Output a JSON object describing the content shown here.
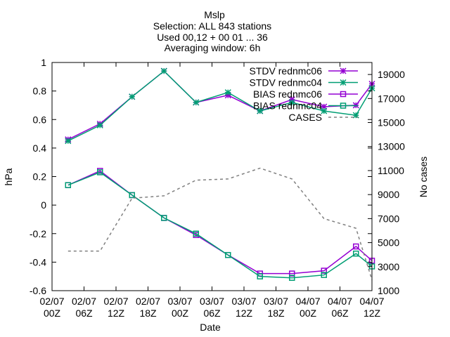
{
  "chart_data": {
    "type": "line",
    "title": [
      "Mslp",
      "Selection: ALL    843 stations",
      "Used 00,12 + 00 01 ... 36",
      "Averaging window:  6h"
    ],
    "xlabel": "Date",
    "ylabel": "hPa",
    "y2label": "No cases",
    "xlim": [
      "02/07 00Z",
      "04/07 12Z"
    ],
    "ylim": [
      -0.6,
      1.0
    ],
    "y2lim": [
      1000,
      20000
    ],
    "x_ticks": [
      {
        "value": "02/07 00Z",
        "line1": "02/07",
        "line2": "00Z"
      },
      {
        "value": "02/07 06Z",
        "line1": "02/07",
        "line2": "06Z"
      },
      {
        "value": "02/07 12Z",
        "line1": "02/07",
        "line2": "12Z"
      },
      {
        "value": "02/07 18Z",
        "line1": "02/07",
        "line2": "18Z"
      },
      {
        "value": "03/07 00Z",
        "line1": "03/07",
        "line2": "00Z"
      },
      {
        "value": "03/07 06Z",
        "line1": "03/07",
        "line2": "06Z"
      },
      {
        "value": "03/07 12Z",
        "line1": "03/07",
        "line2": "12Z"
      },
      {
        "value": "03/07 18Z",
        "line1": "03/07",
        "line2": "18Z"
      },
      {
        "value": "04/07 00Z",
        "line1": "04/07",
        "line2": "00Z"
      },
      {
        "value": "04/07 06Z",
        "line1": "04/07",
        "line2": "06Z"
      },
      {
        "value": "04/07 12Z",
        "line1": "04/07",
        "line2": "12Z"
      }
    ],
    "y_ticks": [
      "-0.6",
      "-0.4",
      "-0.2",
      "0",
      "0.2",
      "0.4",
      "0.6",
      "0.8",
      "1"
    ],
    "y2_ticks": [
      "1000",
      "3000",
      "5000",
      "7000",
      "9000",
      "11000",
      "13000",
      "15000",
      "17000",
      "19000"
    ],
    "grid": false,
    "legend_position": "top-right",
    "x": [
      "02/07 03Z",
      "02/07 09Z",
      "02/07 15Z",
      "02/07 21Z",
      "03/07 03Z",
      "03/07 09Z",
      "03/07 15Z",
      "03/07 21Z",
      "04/07 03Z",
      "04/07 09Z",
      "04/07 12Z"
    ],
    "series": [
      {
        "name": "STDV rednmc06",
        "axis": "y",
        "color": "#9400d3",
        "marker": "star",
        "dash": false,
        "values": [
          0.46,
          0.57,
          0.76,
          0.94,
          0.72,
          0.77,
          0.66,
          0.74,
          0.69,
          0.7,
          0.85
        ]
      },
      {
        "name": "STDV rednmc04",
        "axis": "y",
        "color": "#009e73",
        "marker": "star",
        "dash": false,
        "values": [
          0.45,
          0.56,
          0.76,
          0.94,
          0.72,
          0.79,
          0.66,
          0.72,
          0.66,
          0.63,
          0.82
        ]
      },
      {
        "name": "BIAS rednmc06",
        "axis": "y",
        "color": "#9400d3",
        "marker": "square",
        "dash": false,
        "values": [
          0.14,
          0.24,
          0.07,
          -0.09,
          -0.21,
          -0.35,
          -0.48,
          -0.48,
          -0.46,
          -0.29,
          -0.39
        ]
      },
      {
        "name": "BIAS rednmc04",
        "axis": "y",
        "color": "#009e73",
        "marker": "square",
        "dash": false,
        "values": [
          0.14,
          0.23,
          0.07,
          -0.09,
          -0.2,
          -0.35,
          -0.5,
          -0.51,
          -0.49,
          -0.34,
          -0.43
        ]
      },
      {
        "name": "CASES",
        "axis": "y2",
        "color": "#808080",
        "marker": "none",
        "dash": true,
        "x": [
          "02/07 03Z",
          "02/07 09Z",
          "02/07 15Z",
          "02/07 21Z",
          "03/07 03Z",
          "03/07 09Z",
          "03/07 15Z",
          "03/07 21Z",
          "04/07 03Z",
          "04/07 09Z",
          "04/07 12Z"
        ],
        "values": [
          4300,
          4300,
          8700,
          8900,
          10200,
          10300,
          11200,
          10300,
          7000,
          6200,
          1900
        ]
      }
    ]
  }
}
